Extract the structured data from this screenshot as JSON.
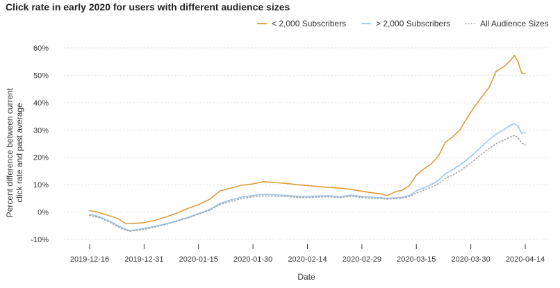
{
  "chart_data": {
    "type": "line",
    "title": "Click rate in early 2020 for users with different audience sizes",
    "xlabel": "Date",
    "ylabel": "Percent difference between current click rate and past average",
    "ylabel_lines": [
      "Percent difference between current",
      "click rate and past average"
    ],
    "x_ticks": [
      "2019-12-16",
      "2019-12-31",
      "2020-01-15",
      "2020-01-30",
      "2020-02-14",
      "2020-02-29",
      "2020-03-15",
      "2020-03-30",
      "2020-04-14"
    ],
    "y_ticks": [
      "-10%",
      "0%",
      "10%",
      "20%",
      "30%",
      "40%",
      "50%",
      "60%"
    ],
    "ylim": [
      -10,
      60
    ],
    "xlim": [
      "2019-12-16",
      "2020-04-14"
    ],
    "grid": "horizontal",
    "legend_position": "top-right",
    "series": [
      {
        "name": "< 2,000 Subscribers",
        "color": "#E39A3A",
        "style": "solid",
        "points": [
          [
            "2019-12-16",
            0.5
          ],
          [
            "2019-12-18",
            0.1
          ],
          [
            "2019-12-21",
            -1.2
          ],
          [
            "2019-12-24",
            -2.5
          ],
          [
            "2019-12-26",
            -4.3
          ],
          [
            "2019-12-28",
            -4.2
          ],
          [
            "2019-12-31",
            -3.9
          ],
          [
            "2020-01-03",
            -3.0
          ],
          [
            "2020-01-06",
            -1.8
          ],
          [
            "2020-01-09",
            -0.4
          ],
          [
            "2020-01-12",
            1.3
          ],
          [
            "2020-01-15",
            2.7
          ],
          [
            "2020-01-18",
            4.6
          ],
          [
            "2020-01-21",
            7.8
          ],
          [
            "2020-01-24",
            8.8
          ],
          [
            "2020-01-27",
            9.8
          ],
          [
            "2020-01-30",
            10.3
          ],
          [
            "2020-02-02",
            11.1
          ],
          [
            "2020-02-05",
            10.8
          ],
          [
            "2020-02-08",
            10.5
          ],
          [
            "2020-02-11",
            10.0
          ],
          [
            "2020-02-14",
            9.7
          ],
          [
            "2020-02-17",
            9.3
          ],
          [
            "2020-02-20",
            9.0
          ],
          [
            "2020-02-23",
            8.7
          ],
          [
            "2020-02-26",
            8.3
          ],
          [
            "2020-02-29",
            7.6
          ],
          [
            "2020-03-02",
            7.2
          ],
          [
            "2020-03-05",
            6.7
          ],
          [
            "2020-03-07",
            6.0
          ],
          [
            "2020-03-09",
            7.3
          ],
          [
            "2020-03-11",
            8.0
          ],
          [
            "2020-03-13",
            9.5
          ],
          [
            "2020-03-15",
            13.5
          ],
          [
            "2020-03-17",
            15.7
          ],
          [
            "2020-03-19",
            17.5
          ],
          [
            "2020-03-21",
            20.3
          ],
          [
            "2020-03-23",
            25.5
          ],
          [
            "2020-03-25",
            27.5
          ],
          [
            "2020-03-27",
            30.0
          ],
          [
            "2020-03-29",
            34.5
          ],
          [
            "2020-03-31",
            38.5
          ],
          [
            "2020-04-02",
            42.0
          ],
          [
            "2020-04-04",
            45.5
          ],
          [
            "2020-04-06",
            51.5
          ],
          [
            "2020-04-08",
            53.0
          ],
          [
            "2020-04-10",
            55.5
          ],
          [
            "2020-04-11",
            57.3
          ],
          [
            "2020-04-12",
            55.0
          ],
          [
            "2020-04-13",
            50.8
          ],
          [
            "2020-04-14",
            50.5
          ]
        ]
      },
      {
        "name": "> 2,000 Subscribers",
        "color": "#9CC7EC",
        "style": "solid",
        "points": [
          [
            "2019-12-16",
            -0.8
          ],
          [
            "2019-12-19",
            -1.8
          ],
          [
            "2019-12-22",
            -3.6
          ],
          [
            "2019-12-25",
            -5.8
          ],
          [
            "2019-12-27",
            -6.8
          ],
          [
            "2019-12-29",
            -6.4
          ],
          [
            "2019-12-31",
            -6.0
          ],
          [
            "2020-01-03",
            -5.2
          ],
          [
            "2020-01-06",
            -4.3
          ],
          [
            "2020-01-09",
            -3.2
          ],
          [
            "2020-01-12",
            -2.0
          ],
          [
            "2020-01-15",
            -0.6
          ],
          [
            "2020-01-18",
            0.9
          ],
          [
            "2020-01-21",
            3.2
          ],
          [
            "2020-01-24",
            4.5
          ],
          [
            "2020-01-27",
            5.5
          ],
          [
            "2020-01-30",
            6.1
          ],
          [
            "2020-02-02",
            6.5
          ],
          [
            "2020-02-05",
            6.3
          ],
          [
            "2020-02-08",
            6.1
          ],
          [
            "2020-02-11",
            5.8
          ],
          [
            "2020-02-14",
            5.7
          ],
          [
            "2020-02-17",
            5.9
          ],
          [
            "2020-02-20",
            6.0
          ],
          [
            "2020-02-23",
            5.6
          ],
          [
            "2020-02-26",
            6.2
          ],
          [
            "2020-02-29",
            5.7
          ],
          [
            "2020-03-02",
            5.5
          ],
          [
            "2020-03-05",
            5.3
          ],
          [
            "2020-03-07",
            5.0
          ],
          [
            "2020-03-09",
            5.2
          ],
          [
            "2020-03-11",
            5.4
          ],
          [
            "2020-03-13",
            6.0
          ],
          [
            "2020-03-15",
            7.8
          ],
          [
            "2020-03-17",
            8.8
          ],
          [
            "2020-03-19",
            10.0
          ],
          [
            "2020-03-21",
            11.5
          ],
          [
            "2020-03-23",
            14.0
          ],
          [
            "2020-03-25",
            15.5
          ],
          [
            "2020-03-27",
            17.2
          ],
          [
            "2020-03-29",
            19.2
          ],
          [
            "2020-03-31",
            21.5
          ],
          [
            "2020-04-02",
            24.0
          ],
          [
            "2020-04-04",
            26.5
          ],
          [
            "2020-04-06",
            28.5
          ],
          [
            "2020-04-08",
            30.0
          ],
          [
            "2020-04-10",
            31.8
          ],
          [
            "2020-04-11",
            32.3
          ],
          [
            "2020-04-12",
            31.5
          ],
          [
            "2020-04-13",
            28.8
          ],
          [
            "2020-04-14",
            29.0
          ]
        ]
      },
      {
        "name": "All Audience Sizes",
        "color": "#9AA3AD",
        "style": "dotted",
        "points": [
          [
            "2019-12-16",
            -1.2
          ],
          [
            "2019-12-19",
            -2.2
          ],
          [
            "2019-12-22",
            -4.0
          ],
          [
            "2019-12-25",
            -6.2
          ],
          [
            "2019-12-27",
            -7.0
          ],
          [
            "2019-12-29",
            -6.7
          ],
          [
            "2019-12-31",
            -6.3
          ],
          [
            "2020-01-03",
            -5.5
          ],
          [
            "2020-01-06",
            -4.5
          ],
          [
            "2020-01-09",
            -3.4
          ],
          [
            "2020-01-12",
            -2.2
          ],
          [
            "2020-01-15",
            -0.8
          ],
          [
            "2020-01-18",
            0.6
          ],
          [
            "2020-01-21",
            2.8
          ],
          [
            "2020-01-24",
            4.0
          ],
          [
            "2020-01-27",
            5.0
          ],
          [
            "2020-01-30",
            5.6
          ],
          [
            "2020-02-02",
            5.9
          ],
          [
            "2020-02-05",
            5.8
          ],
          [
            "2020-02-08",
            5.7
          ],
          [
            "2020-02-11",
            5.4
          ],
          [
            "2020-02-14",
            5.3
          ],
          [
            "2020-02-17",
            5.5
          ],
          [
            "2020-02-20",
            5.6
          ],
          [
            "2020-02-23",
            5.3
          ],
          [
            "2020-02-26",
            5.8
          ],
          [
            "2020-02-29",
            5.3
          ],
          [
            "2020-03-02",
            5.1
          ],
          [
            "2020-03-05",
            5.0
          ],
          [
            "2020-03-07",
            4.7
          ],
          [
            "2020-03-09",
            4.9
          ],
          [
            "2020-03-11",
            5.1
          ],
          [
            "2020-03-13",
            5.6
          ],
          [
            "2020-03-15",
            7.0
          ],
          [
            "2020-03-17",
            8.0
          ],
          [
            "2020-03-19",
            9.0
          ],
          [
            "2020-03-21",
            10.3
          ],
          [
            "2020-03-23",
            12.3
          ],
          [
            "2020-03-25",
            13.5
          ],
          [
            "2020-03-27",
            15.0
          ],
          [
            "2020-03-29",
            17.0
          ],
          [
            "2020-03-31",
            19.0
          ],
          [
            "2020-04-02",
            21.2
          ],
          [
            "2020-04-04",
            23.2
          ],
          [
            "2020-04-06",
            25.0
          ],
          [
            "2020-04-08",
            26.2
          ],
          [
            "2020-04-10",
            27.5
          ],
          [
            "2020-04-11",
            28.0
          ],
          [
            "2020-04-12",
            27.2
          ],
          [
            "2020-04-13",
            25.3
          ],
          [
            "2020-04-14",
            24.5
          ]
        ]
      }
    ]
  }
}
